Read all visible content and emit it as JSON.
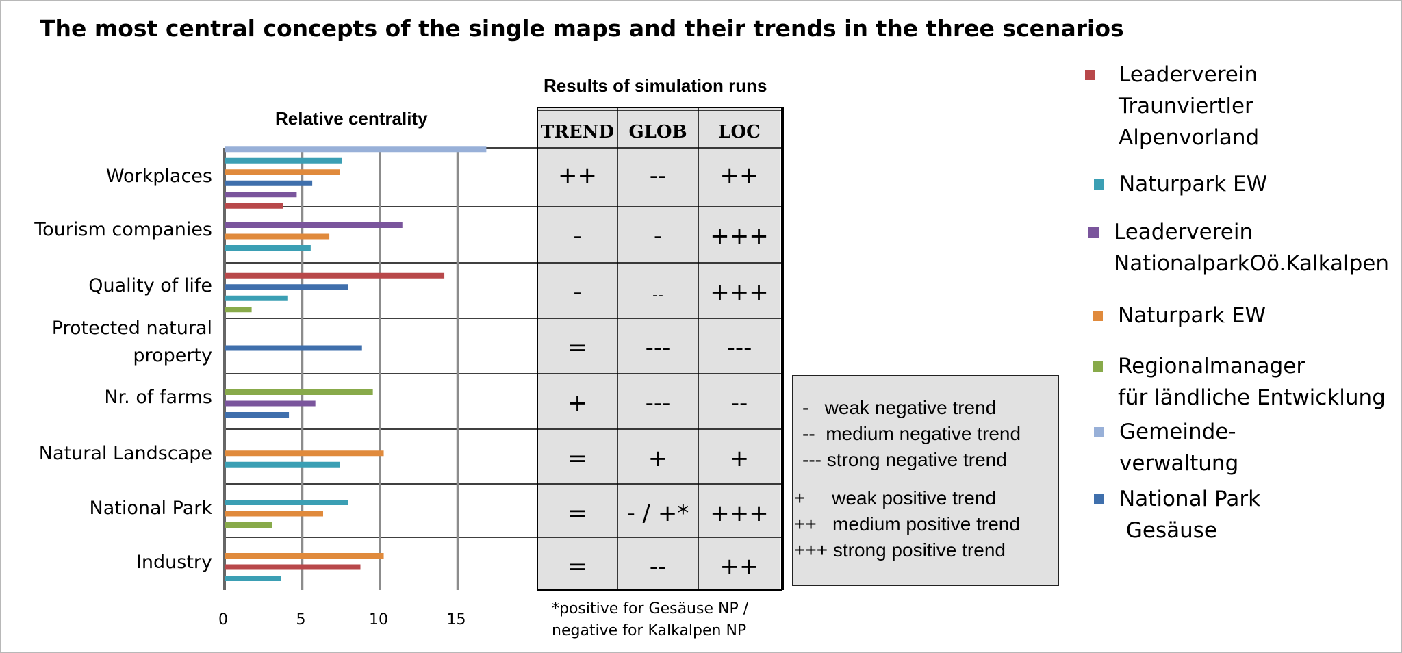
{
  "title": "The most central concepts of the single maps  and their trends in the three scenarios",
  "results_title": "Results of simulation runs",
  "footnote": "*positive for Gesäuse NP /\nnegative for Kalkalpen NP",
  "table": {
    "columns": [
      "TREND",
      "GLOB",
      "LOC"
    ],
    "rows": [
      [
        "++",
        "--",
        "++"
      ],
      [
        "-",
        "-",
        "+++"
      ],
      [
        "-",
        "--",
        "+++"
      ],
      [
        "=",
        "---",
        "---"
      ],
      [
        "+",
        "---",
        "--"
      ],
      [
        "=",
        "+",
        "+"
      ],
      [
        "=",
        "- / +*",
        "+++"
      ],
      [
        "=",
        "--",
        "++"
      ]
    ]
  },
  "key": {
    "lines": [
      "-   weak negative trend",
      "--  medium negative trend",
      "--- strong negative trend",
      "+     weak positive trend",
      "++   medium positive trend",
      "+++ strong positive trend"
    ]
  },
  "legend": [
    {
      "label": "Leaderverein\nTraunviertler\nAlpenvorland",
      "color": "#b8484a"
    },
    {
      "label": "Naturpark EW",
      "color": "#3b9fb4"
    },
    {
      "label": "Leaderverein\nNationalparkOö.Kalkalpen",
      "color": "#7a559c"
    },
    {
      "label": "Naturpark EW",
      "color": "#e08a3c"
    },
    {
      "label": "Regionalmanager\nfür ländliche Entwicklung",
      "color": "#88aa4a"
    },
    {
      "label": "Gemeinde-\nverwaltung",
      "color": "#98b0d8"
    },
    {
      "label": "National Park\n Gesäuse",
      "color": "#3f6fac"
    }
  ],
  "chart_data": {
    "type": "bar",
    "title": "Relative centrality",
    "xlabel": "",
    "ylabel": "",
    "xlim": [
      0,
      20
    ],
    "xticks": [
      0,
      5,
      10,
      15
    ],
    "grid": true,
    "categories": [
      "Workplaces",
      "Tourism companies",
      "Quality of life",
      "Protected natural\nproperty",
      "Nr. of farms",
      "Natural Landscape",
      "National Park",
      "Industry"
    ],
    "bars": [
      [
        {
          "series": 5,
          "value": 16.8
        },
        {
          "series": 1,
          "value": 7.5
        },
        {
          "series": 3,
          "value": 7.4
        },
        {
          "series": 6,
          "value": 5.6
        },
        {
          "series": 2,
          "value": 4.6
        },
        {
          "series": 0,
          "value": 3.7
        }
      ],
      [
        {
          "series": 2,
          "value": 11.4
        },
        {
          "series": 3,
          "value": 6.7
        },
        {
          "series": 1,
          "value": 5.5
        }
      ],
      [
        {
          "series": 0,
          "value": 14.1
        },
        {
          "series": 6,
          "value": 7.9
        },
        {
          "series": 1,
          "value": 4.0
        },
        {
          "series": 4,
          "value": 1.7
        }
      ],
      [
        {
          "series": 6,
          "value": 8.8
        }
      ],
      [
        {
          "series": 4,
          "value": 9.5
        },
        {
          "series": 2,
          "value": 5.8
        },
        {
          "series": 6,
          "value": 4.1
        }
      ],
      [
        {
          "series": 3,
          "value": 10.2
        },
        {
          "series": 1,
          "value": 7.4
        }
      ],
      [
        {
          "series": 1,
          "value": 7.9
        },
        {
          "series": 3,
          "value": 6.3
        },
        {
          "series": 4,
          "value": 3.0
        }
      ],
      [
        {
          "series": 3,
          "value": 10.2
        },
        {
          "series": 0,
          "value": 8.7
        },
        {
          "series": 1,
          "value": 3.6
        }
      ]
    ]
  }
}
